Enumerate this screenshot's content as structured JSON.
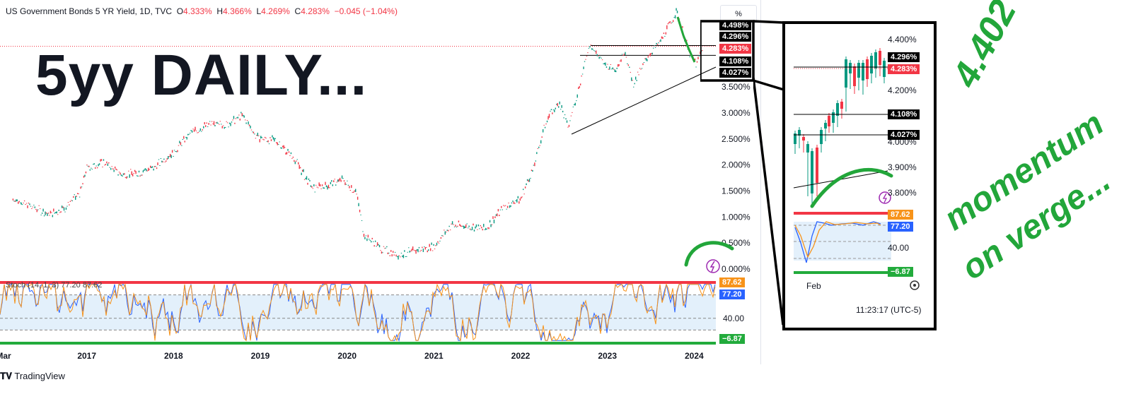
{
  "header": {
    "symbol": "US Government Bonds 5 YR Yield, 1D, TVC",
    "open_label": "O",
    "open": "4.333%",
    "high_label": "H",
    "high": "4.366%",
    "low_label": "L",
    "low": "4.269%",
    "close_label": "C",
    "close": "4.283%",
    "change": "−0.045 (−1.04%)",
    "scale_button": "%"
  },
  "overlay_title": "5yy DAILY...",
  "footer": {
    "brand": "TradingView"
  },
  "price_tags": [
    "4.498%",
    "4.296%",
    "4.283%",
    "4.108%",
    "4.027%"
  ],
  "osc_tags": [
    "87.62",
    "77.20",
    "−6.87"
  ],
  "osc_legend": "Stoch (14, 1, 3) 77.20 87.62",
  "inset": {
    "price_labels": [
      "4.400%",
      "4.200%",
      "4.000%",
      "3.900%",
      "3.800%"
    ],
    "tags": [
      "4.296%",
      "4.283%",
      "4.108%",
      "4.027%"
    ],
    "osc_label": "40.00",
    "osc_tags": [
      "87.62",
      "77.20",
      "−6.87"
    ],
    "x_label": "Feb",
    "clock": "11:23:17 (UTC-5)"
  },
  "annotations": {
    "level": "4.402",
    "note_line1": "momentum",
    "note_line2": "on verge..."
  },
  "chart_data": {
    "type": "line",
    "title": "US Government Bonds 5 YR Yield, 1D, TVC",
    "x_ticks": [
      "Mar",
      "2017",
      "2018",
      "2019",
      "2020",
      "2021",
      "2022",
      "2023",
      "2024"
    ],
    "y_ticks": [
      "0.000%",
      "0.500%",
      "1.000%",
      "1.500%",
      "2.000%",
      "2.500%",
      "3.000%",
      "3.500%"
    ],
    "ylim": [
      0,
      4.9
    ],
    "series": [
      {
        "values": [
          [
            2016.15,
            1.35
          ],
          [
            2016.35,
            1.22
          ],
          [
            2016.55,
            1.05
          ],
          [
            2016.75,
            1.18
          ],
          [
            2016.92,
            1.45
          ],
          [
            2017.0,
            1.95
          ],
          [
            2017.2,
            2.05
          ],
          [
            2017.4,
            1.82
          ],
          [
            2017.6,
            1.85
          ],
          [
            2017.8,
            1.98
          ],
          [
            2018.0,
            2.25
          ],
          [
            2018.2,
            2.62
          ],
          [
            2018.4,
            2.78
          ],
          [
            2018.6,
            2.78
          ],
          [
            2018.8,
            2.95
          ],
          [
            2018.95,
            2.55
          ],
          [
            2019.2,
            2.45
          ],
          [
            2019.4,
            2.1
          ],
          [
            2019.6,
            1.55
          ],
          [
            2019.8,
            1.62
          ],
          [
            2019.95,
            1.72
          ],
          [
            2020.1,
            1.5
          ],
          [
            2020.2,
            0.65
          ],
          [
            2020.4,
            0.38
          ],
          [
            2020.6,
            0.27
          ],
          [
            2020.8,
            0.37
          ],
          [
            2021.0,
            0.43
          ],
          [
            2021.2,
            0.85
          ],
          [
            2021.4,
            0.82
          ],
          [
            2021.6,
            0.78
          ],
          [
            2021.8,
            1.18
          ],
          [
            2022.0,
            1.35
          ],
          [
            2022.15,
            1.95
          ],
          [
            2022.3,
            2.88
          ],
          [
            2022.45,
            3.2
          ],
          [
            2022.55,
            2.72
          ],
          [
            2022.65,
            3.35
          ],
          [
            2022.8,
            4.35
          ],
          [
            2022.95,
            3.95
          ],
          [
            2023.1,
            3.85
          ],
          [
            2023.2,
            4.2
          ],
          [
            2023.3,
            3.55
          ],
          [
            2023.45,
            4.05
          ],
          [
            2023.6,
            4.35
          ],
          [
            2023.8,
            4.95
          ],
          [
            2023.95,
            4.12
          ],
          [
            2024.03,
            3.95
          ],
          [
            2024.1,
            4.28
          ]
        ]
      }
    ],
    "oscillator": {
      "name": "Stoch (14, 1, 3)",
      "k": 77.2,
      "d": 87.62,
      "levels": [
        80,
        40,
        20
      ]
    },
    "horizontal_levels": [
      4.296,
      4.108,
      4.027
    ],
    "last_value": 4.283
  }
}
